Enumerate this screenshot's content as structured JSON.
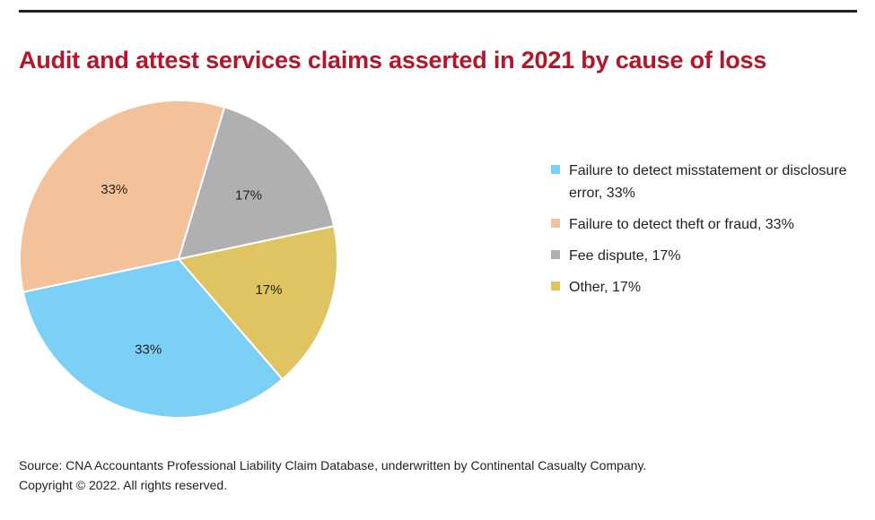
{
  "header": {
    "title": "Audit and attest services claims asserted in 2021 by cause of loss"
  },
  "chart_data": {
    "type": "pie",
    "title": "Audit and attest services claims asserted in 2021 by cause of loss",
    "legend_position": "right",
    "slices": [
      {
        "name": "Failure to detect misstatement or disclosure error",
        "value": 33,
        "label": "33%",
        "legend_label": "Failure to detect misstatement or disclosure error, 33%",
        "color": "#7dd0f5"
      },
      {
        "name": "Failure to detect theft or fraud",
        "value": 33,
        "label": "33%",
        "legend_label": "Failure to detect theft or fraud, 33%",
        "color": "#f4c29a"
      },
      {
        "name": "Fee dispute",
        "value": 17,
        "label": "17%",
        "legend_label": "Fee dispute, 17%",
        "color": "#b0b0b3"
      },
      {
        "name": "Other",
        "value": 17,
        "label": "17%",
        "legend_label": "Other, 17%",
        "color": "#e1c462"
      }
    ]
  },
  "footer": {
    "source": "Source: CNA Accountants Professional Liability Claim Database, underwritten by Continental Casualty Company.",
    "copyright": "Copyright © 2022. All rights reserved."
  }
}
